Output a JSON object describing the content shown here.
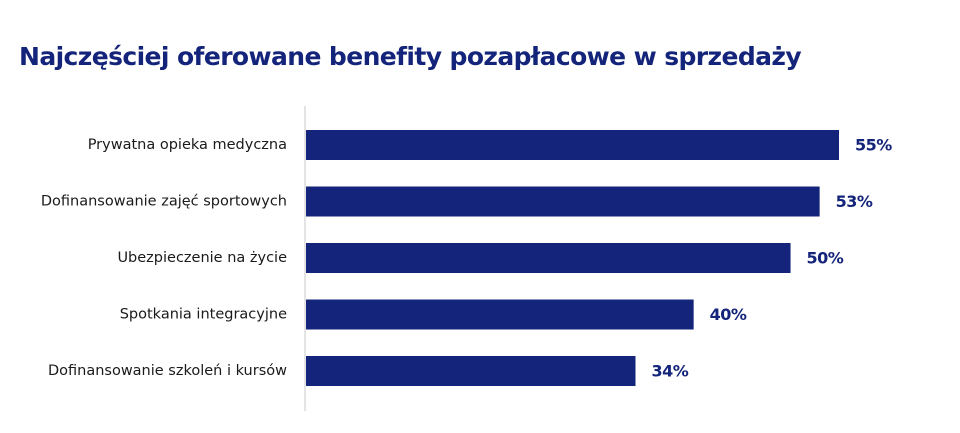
{
  "title": "Najczęściej oferowane benefity pozapłacowe w sprzedaży",
  "colors": {
    "bar": "#13247a",
    "title": "#13247a",
    "axis": "#c8c8c8",
    "label": "#1a1a1a"
  },
  "chart_data": {
    "type": "bar",
    "orientation": "horizontal",
    "title": "Najczęściej oferowane benefity pozapłacowe w sprzedaży",
    "categories": [
      "Prywatna opieka medyczna",
      "Dofinansowanie zajęć sportowych",
      "Ubezpieczenie na życie",
      "Spotkania integracyjne",
      "Dofinansowanie szkoleń i kursów"
    ],
    "values": [
      55,
      53,
      50,
      40,
      34
    ],
    "value_labels": [
      "55%",
      "53%",
      "50%",
      "40%",
      "34%"
    ],
    "xlim": [
      0,
      55
    ],
    "grid": false,
    "legend": "none"
  }
}
